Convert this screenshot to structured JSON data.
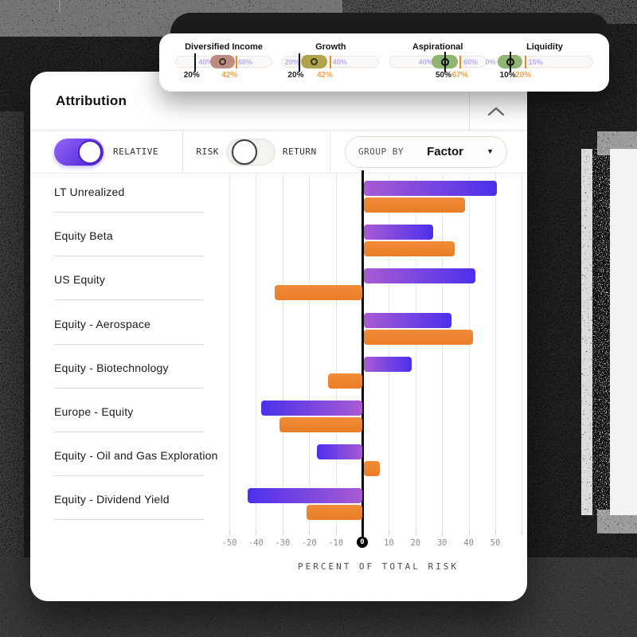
{
  "panel": {
    "title": "Attribution",
    "collapse_icon": "chevron-up"
  },
  "controls": {
    "relative_label": "RELATIVE",
    "risk_label": "RISK",
    "return_label": "RETURN",
    "group_by_label": "GROUP BY",
    "group_by_value": "Factor",
    "group_by_icon": "caret-down"
  },
  "allocation_card": {
    "widgets": [
      {
        "title": "Diversified Income",
        "pill_color": "#bd8c81",
        "handle": "ring",
        "range_low_label": "40%",
        "range_low_x": 24,
        "range_high_label": "60%",
        "range_high_x": 65,
        "pill_start": 36,
        "pill_end": 62,
        "marker_x": null,
        "black_tick_x": 20,
        "orange_tick_x": 63,
        "current_value": "20%",
        "current_x": 17,
        "alt_value": "42%",
        "alt_x": 56
      },
      {
        "title": "Growth",
        "pill_color": "#afa44c",
        "handle": "ring",
        "range_low_label": "20%",
        "range_low_x": 2,
        "range_high_label": "40%",
        "range_high_x": 52,
        "pill_start": 19,
        "pill_end": 46,
        "marker_x": null,
        "black_tick_x": 17,
        "orange_tick_x": 50,
        "current_value": "20%",
        "current_x": 14,
        "alt_value": "42%",
        "alt_x": 44
      },
      {
        "title": "Aspirational",
        "pill_color": "#90b471",
        "handle": "marker",
        "range_low_label": "40%",
        "range_low_x": 30,
        "range_high_label": "60%",
        "range_high_x": 77,
        "pill_start": 44,
        "pill_end": 71,
        "marker_x": 58,
        "black_tick_x": null,
        "orange_tick_x": 74,
        "current_value": "50%",
        "current_x": 56,
        "alt_value": "67%",
        "alt_x": 73
      },
      {
        "title": "Liquidity",
        "pill_color": "#90b471",
        "handle": "marker",
        "range_low_label": "0%",
        "range_low_x": -12,
        "range_high_label": "15%",
        "range_high_x": 33,
        "pill_start": 1,
        "pill_end": 27,
        "marker_x": 14,
        "black_tick_x": null,
        "orange_tick_x": 30,
        "current_value": "10%",
        "current_x": 12,
        "alt_value": "20%",
        "alt_x": 28
      }
    ]
  },
  "chart_data": {
    "type": "bar",
    "orientation": "horizontal",
    "title": "Attribution",
    "categories": [
      "LT Unrealized",
      "Equity Beta",
      "US Equity",
      "Equity - Aerospace",
      "Equity - Biotechnology",
      "Europe - Equity",
      "Equity - Oil and Gas Exploration",
      "Equity - Dividend Yield"
    ],
    "series": [
      {
        "name": "purple",
        "color_gradient": [
          "#a85bd3",
          "#4c30ec"
        ],
        "values": [
          50,
          26,
          42,
          33,
          18,
          -38,
          -17,
          -43
        ]
      },
      {
        "name": "orange",
        "color": "#ee8530",
        "values": [
          38,
          34,
          -33,
          41,
          -13,
          -31,
          6,
          -21
        ]
      }
    ],
    "xlabel": "PERCENT OF TOTAL RISK",
    "xticks": [
      "-50",
      "-40",
      "-30",
      "-20",
      "-10",
      "0",
      "10",
      "20",
      "30",
      "40",
      "50"
    ],
    "xlim": [
      -55,
      65
    ],
    "grid": true,
    "legend": "none"
  },
  "colors": {
    "bar_purple_light": "#a85bd3",
    "bar_purple_dark": "#4c30ec",
    "bar_orange": "#ee8530",
    "toggle_purple_start": "#9468f6",
    "toggle_purple_end": "#5526dd",
    "range_label_purple": "#b7adf2",
    "alt_value_orange": "#efa24b"
  }
}
